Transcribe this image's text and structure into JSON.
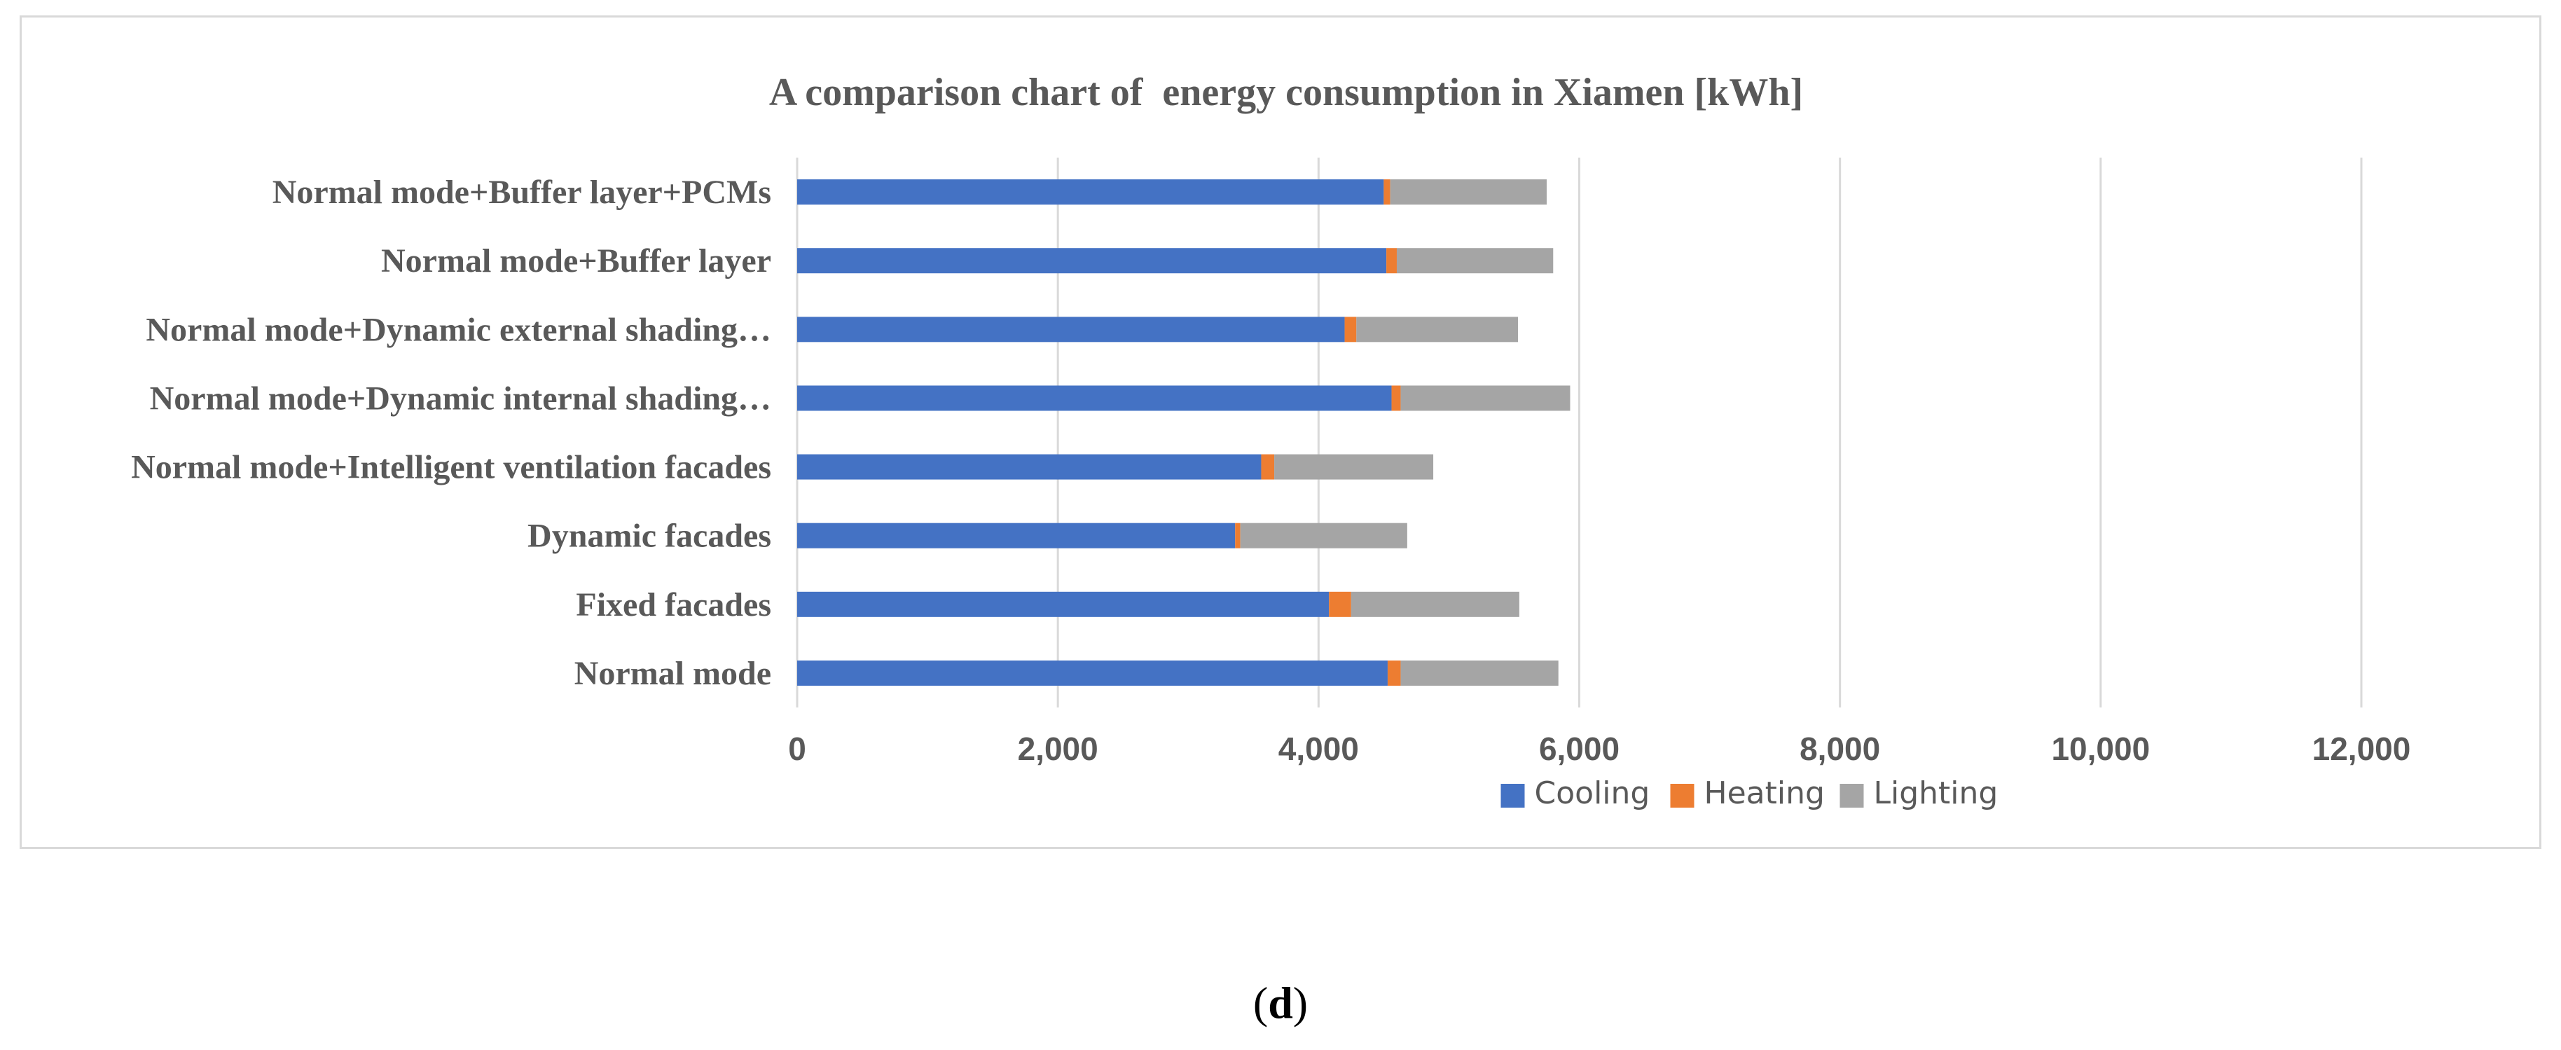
{
  "chart_data": {
    "type": "bar",
    "orientation": "horizontal",
    "stacked": true,
    "title": "A comparison chart of  energy consumption in Xiamen [kWh]",
    "categories": [
      "Normal mode+Buffer layer+PCMs",
      "Normal mode+Buffer layer",
      "Normal mode+Dynamic external  shading…",
      "Normal mode+Dynamic internal shading…",
      "Normal mode+Intelligent ventilation facades",
      "Dynamic facades",
      "Fixed facades",
      "Normal mode"
    ],
    "series": [
      {
        "name": "Cooling",
        "color": "#4472c4",
        "values": [
          4500,
          4520,
          4200,
          4560,
          3560,
          3360,
          4080,
          4530
        ]
      },
      {
        "name": "Heating",
        "color": "#ed7d31",
        "values": [
          50,
          80,
          90,
          70,
          100,
          40,
          170,
          100
        ]
      },
      {
        "name": "Lighting",
        "color": "#a5a5a5",
        "values": [
          1200,
          1200,
          1240,
          1300,
          1220,
          1280,
          1290,
          1210
        ]
      }
    ],
    "xlim": [
      0,
      12000
    ],
    "xticks": [
      0,
      2000,
      4000,
      6000,
      8000,
      10000,
      12000
    ],
    "xtick_labels": [
      "0",
      "2,000",
      "4,000",
      "6,000",
      "8,000",
      "10,000",
      "12,000"
    ],
    "xlabel": "",
    "ylabel": "",
    "grid": "vertical",
    "legend_position": "bottom"
  },
  "panel_label": {
    "open": "(",
    "letter": "d",
    "close": ")"
  }
}
